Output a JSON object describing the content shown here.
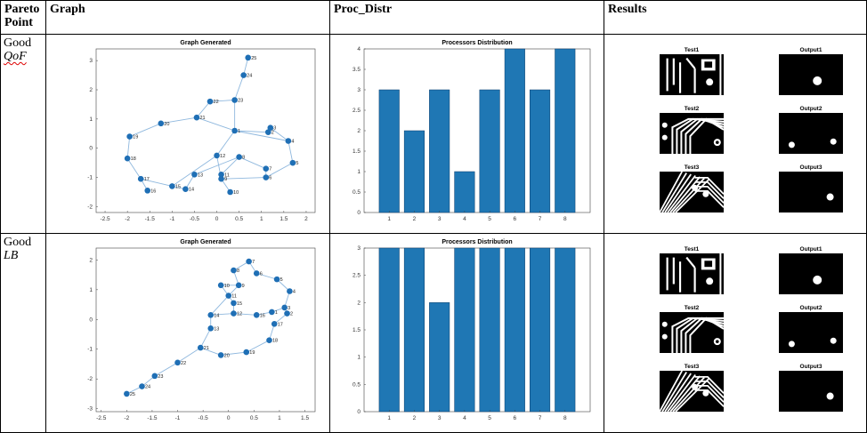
{
  "table": {
    "headers": [
      "Pareto Point",
      "Graph",
      "Proc_Distr",
      "Results"
    ],
    "header_pareto_line1": "Pareto",
    "header_pareto_line2": "Point"
  },
  "rows": [
    {
      "pareto_word": "Good",
      "pareto_metric": "QoF",
      "graph_title": "Graph Generated",
      "dist_title": "Processors Distribution",
      "results": {
        "labels": [
          "Test1",
          "Output1",
          "Test2",
          "Output2",
          "Test3",
          "Output3"
        ]
      }
    },
    {
      "pareto_word": "Good",
      "pareto_metric": "LB",
      "graph_title": "Graph Generated",
      "dist_title": "Processors Distribution",
      "results": {
        "labels": [
          "Test1",
          "Output1",
          "Test2",
          "Output2",
          "Test3",
          "Output3"
        ]
      }
    }
  ],
  "colors": {
    "bar_fill": "#1f77b4",
    "node_fill": "#1f6fb5",
    "edge": "#8fb8de"
  },
  "chart_data": [
    {
      "type": "scatter",
      "title": "Graph Generated",
      "xlim": [
        -2.7,
        2.2
      ],
      "ylim": [
        -2.2,
        3.4
      ],
      "xticks": [
        "-2.5",
        "-2",
        "-1.5",
        "-1",
        "-0.5",
        "0",
        "0.5",
        "1",
        "1.5",
        "2"
      ],
      "yticks": [
        "-2",
        "-1",
        "0",
        "1",
        "2",
        "3"
      ],
      "nodes": [
        {
          "label": "1",
          "x": 0.4,
          "y": 0.6
        },
        {
          "label": "2",
          "x": 1.15,
          "y": 0.55
        },
        {
          "label": "3",
          "x": 1.2,
          "y": 0.7
        },
        {
          "label": "4",
          "x": 1.6,
          "y": 0.25
        },
        {
          "label": "5",
          "x": 1.7,
          "y": -0.5
        },
        {
          "label": "6",
          "x": 1.1,
          "y": -1.0
        },
        {
          "label": "7",
          "x": 1.1,
          "y": -0.7
        },
        {
          "label": "8",
          "x": 0.5,
          "y": -0.3
        },
        {
          "label": "9",
          "x": 0.1,
          "y": -1.05
        },
        {
          "label": "10",
          "x": 0.3,
          "y": -1.5
        },
        {
          "label": "11",
          "x": 0.1,
          "y": -0.9
        },
        {
          "label": "12",
          "x": 0.0,
          "y": -0.25
        },
        {
          "label": "13",
          "x": -0.5,
          "y": -0.9
        },
        {
          "label": "14",
          "x": -0.7,
          "y": -1.4
        },
        {
          "label": "15",
          "x": -1.0,
          "y": -1.3
        },
        {
          "label": "16",
          "x": -1.55,
          "y": -1.45
        },
        {
          "label": "17",
          "x": -1.7,
          "y": -1.05
        },
        {
          "label": "18",
          "x": -2.0,
          "y": -0.35
        },
        {
          "label": "19",
          "x": -1.95,
          "y": 0.4
        },
        {
          "label": "20",
          "x": -1.25,
          "y": 0.85
        },
        {
          "label": "21",
          "x": -0.45,
          "y": 1.05
        },
        {
          "label": "22",
          "x": -0.15,
          "y": 1.6
        },
        {
          "label": "23",
          "x": 0.4,
          "y": 1.65
        },
        {
          "label": "24",
          "x": 0.6,
          "y": 2.5
        },
        {
          "label": "25",
          "x": 0.7,
          "y": 3.1
        }
      ],
      "edges": [
        [
          25,
          24
        ],
        [
          24,
          23
        ],
        [
          23,
          22
        ],
        [
          22,
          21
        ],
        [
          23,
          1
        ],
        [
          21,
          20
        ],
        [
          20,
          19
        ],
        [
          19,
          18
        ],
        [
          18,
          17
        ],
        [
          17,
          16
        ],
        [
          17,
          15
        ],
        [
          15,
          14
        ],
        [
          14,
          13
        ],
        [
          13,
          8
        ],
        [
          12,
          9
        ],
        [
          9,
          10
        ],
        [
          11,
          9
        ],
        [
          11,
          8
        ],
        [
          8,
          7
        ],
        [
          7,
          6
        ],
        [
          6,
          5
        ],
        [
          5,
          4
        ],
        [
          4,
          3
        ],
        [
          3,
          2
        ],
        [
          2,
          1
        ],
        [
          1,
          12
        ],
        [
          1,
          21
        ],
        [
          12,
          15
        ],
        [
          9,
          6
        ],
        [
          1,
          4
        ]
      ]
    },
    {
      "type": "bar",
      "title": "Processors Distribution",
      "categories": [
        "1",
        "2",
        "3",
        "4",
        "5",
        "6",
        "7",
        "8"
      ],
      "values": [
        3,
        2,
        3,
        1,
        3,
        4,
        3,
        4
      ],
      "ylim": [
        0,
        4
      ],
      "yticks": [
        "0",
        "0.5",
        "1",
        "1.5",
        "2",
        "2.5",
        "3",
        "3.5",
        "4"
      ]
    },
    {
      "type": "scatter",
      "title": "Graph Generated",
      "xlim": [
        -2.6,
        1.7
      ],
      "ylim": [
        -3.1,
        2.4
      ],
      "xticks": [
        "-2.5",
        "-2",
        "-1.5",
        "-1",
        "-0.5",
        "0",
        "0.5",
        "1",
        "1.5"
      ],
      "yticks": [
        "-3",
        "-2",
        "-1",
        "0",
        "1",
        "2"
      ],
      "nodes": [
        {
          "label": "1",
          "x": 0.85,
          "y": 0.25
        },
        {
          "label": "2",
          "x": 1.15,
          "y": 0.2
        },
        {
          "label": "3",
          "x": 1.1,
          "y": 0.4
        },
        {
          "label": "4",
          "x": 1.2,
          "y": 0.95
        },
        {
          "label": "5",
          "x": 0.95,
          "y": 1.35
        },
        {
          "label": "6",
          "x": 0.55,
          "y": 1.55
        },
        {
          "label": "7",
          "x": 0.4,
          "y": 1.95
        },
        {
          "label": "8",
          "x": 0.1,
          "y": 1.65
        },
        {
          "label": "9",
          "x": 0.2,
          "y": 1.15
        },
        {
          "label": "10",
          "x": -0.15,
          "y": 1.15
        },
        {
          "label": "11",
          "x": 0.0,
          "y": 0.8
        },
        {
          "label": "12",
          "x": 0.1,
          "y": 0.2
        },
        {
          "label": "13",
          "x": -0.35,
          "y": -0.3
        },
        {
          "label": "14",
          "x": -0.35,
          "y": 0.15
        },
        {
          "label": "15",
          "x": 0.1,
          "y": 0.55
        },
        {
          "label": "16",
          "x": 0.55,
          "y": 0.15
        },
        {
          "label": "17",
          "x": 0.9,
          "y": -0.15
        },
        {
          "label": "18",
          "x": 0.8,
          "y": -0.7
        },
        {
          "label": "19",
          "x": 0.35,
          "y": -1.1
        },
        {
          "label": "20",
          "x": -0.15,
          "y": -1.2
        },
        {
          "label": "21",
          "x": -0.55,
          "y": -0.95
        },
        {
          "label": "22",
          "x": -1.0,
          "y": -1.45
        },
        {
          "label": "23",
          "x": -1.45,
          "y": -1.9
        },
        {
          "label": "24",
          "x": -1.7,
          "y": -2.25
        },
        {
          "label": "25",
          "x": -2.0,
          "y": -2.5
        }
      ],
      "edges": [
        [
          25,
          24
        ],
        [
          24,
          23
        ],
        [
          23,
          22
        ],
        [
          22,
          21
        ],
        [
          21,
          20
        ],
        [
          20,
          19
        ],
        [
          19,
          18
        ],
        [
          18,
          17
        ],
        [
          17,
          2
        ],
        [
          2,
          3
        ],
        [
          3,
          4
        ],
        [
          4,
          5
        ],
        [
          5,
          6
        ],
        [
          6,
          7
        ],
        [
          7,
          8
        ],
        [
          8,
          9
        ],
        [
          9,
          10
        ],
        [
          9,
          11
        ],
        [
          11,
          15
        ],
        [
          15,
          12
        ],
        [
          12,
          16
        ],
        [
          16,
          1
        ],
        [
          1,
          3
        ],
        [
          12,
          14
        ],
        [
          14,
          13
        ],
        [
          13,
          21
        ],
        [
          10,
          11
        ],
        [
          11,
          14
        ]
      ]
    },
    {
      "type": "bar",
      "title": "Processors Distribution",
      "categories": [
        "1",
        "2",
        "3",
        "4",
        "5",
        "6",
        "7",
        "8"
      ],
      "values": [
        3,
        3,
        2,
        3,
        3,
        3,
        3,
        3
      ],
      "ylim": [
        0,
        3
      ],
      "yticks": [
        "0",
        "0.5",
        "1",
        "1.5",
        "2",
        "2.5",
        "3"
      ]
    }
  ]
}
